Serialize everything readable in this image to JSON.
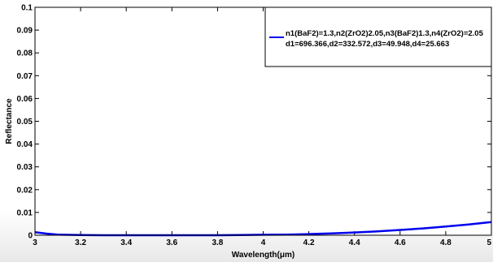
{
  "chart_data": {
    "type": "line",
    "xlabel": "Wavelength(μm)",
    "ylabel": "Reflectance",
    "xlim": [
      3,
      5
    ],
    "ylim": [
      0,
      0.1
    ],
    "x_ticks": [
      "3",
      "3.2",
      "3.4",
      "3.6",
      "3.8",
      "4",
      "4.2",
      "4.4",
      "4.6",
      "4.8",
      "5"
    ],
    "y_ticks": [
      "0",
      "0.01",
      "0.02",
      "0.03",
      "0.04",
      "0.05",
      "0.06",
      "0.07",
      "0.08",
      "0.09",
      "0.1"
    ],
    "grid": false,
    "legend_position": "top-right",
    "series": [
      {
        "name": "n1(BaF2)=1.3,n2(ZrO2)2.05,n3(BaF2)1.3,n4(ZrO2)=2.05",
        "name_line2": "d1=696.366,d2=332.572,d3=49.948,d4=25.663",
        "color": "#0000ee",
        "x": [
          3.0,
          3.05,
          3.1,
          3.2,
          3.3,
          3.4,
          3.5,
          3.6,
          3.7,
          3.8,
          3.9,
          4.0,
          4.1,
          4.2,
          4.3,
          4.4,
          4.5,
          4.6,
          4.7,
          4.8,
          4.9,
          5.0
        ],
        "y": [
          0.0013,
          0.0007,
          0.0003,
          0.0001,
          0.0,
          0.0,
          0.0,
          0.0,
          0.0,
          0.0,
          0.0001,
          0.0002,
          0.0003,
          0.0005,
          0.0008,
          0.0012,
          0.0017,
          0.0023,
          0.003,
          0.0038,
          0.0047,
          0.0058
        ]
      }
    ]
  }
}
